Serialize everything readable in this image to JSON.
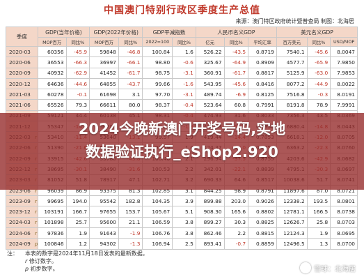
{
  "title": "中国澳门特别行政区季度生产总值",
  "source": "来源：澳门特区政府统计暨普查局    制图：北海居",
  "headers": {
    "quarter": "季度",
    "gdp_current": "GDP(当年价格)",
    "gdp_2022": "GDP(2022年价格)",
    "deflator": "GDP平减指数",
    "gdp_rmb": "人民币名义GDP",
    "gdp_usd": "美元名义GDP"
  },
  "subheaders": [
    "MOP百万",
    "同比%",
    "MOP百万",
    "同比%",
    "2022=100",
    "同比%",
    "亿元",
    "同比%",
    "平均汇率",
    "百万美元",
    "同比%",
    "USD/MOP"
  ],
  "rows": [
    {
      "q": "2020-03",
      "flag": "",
      "v": [
        "60356",
        "-45.9",
        "59848",
        "-46.8",
        "100.84",
        "1.6",
        "526.22",
        "-43.5",
        "0.8719",
        "7540.1",
        "-45.6",
        "8.0047"
      ]
    },
    {
      "q": "2020-06",
      "flag": "",
      "v": [
        "36553",
        "-66.3",
        "36997",
        "-66.1",
        "98.80",
        "-0.6",
        "325.67",
        "-64.9",
        "0.8909",
        "4577.7",
        "-65.9",
        "7.9850"
      ]
    },
    {
      "q": "2020-09",
      "flag": "",
      "v": [
        "40932",
        "-62.9",
        "41452",
        "-61.7",
        "98.75",
        "-3.1",
        "360.91",
        "-61.7",
        "0.8817",
        "5125.9",
        "-63.0",
        "7.9853"
      ]
    },
    {
      "q": "2020-12",
      "flag": "",
      "v": [
        "64636",
        "-44.6",
        "64855",
        "-43.7",
        "99.66",
        "-1.6",
        "543.95",
        "-45.6",
        "0.8416",
        "8077.2",
        "-44.9",
        "8.0022"
      ]
    },
    {
      "q": "2021-03",
      "flag": "",
      "v": [
        "60278",
        "-0.1",
        "61698",
        "3.1",
        "97.70",
        "-3.1",
        "489.74",
        "-6.9",
        "0.8125",
        "7516.8",
        "-0.3",
        "8.0191"
      ]
    },
    {
      "q": "2021-06",
      "flag": "",
      "v": [
        "65526",
        "79.3",
        "66611",
        "80.0",
        "98.37",
        "-0.4",
        "523.64",
        "60.8",
        "0.7991",
        "8191.8",
        "78.9",
        "7.9991"
      ]
    },
    {
      "q": "2021-09",
      "flag": "",
      "v": [
        "59121",
        "44.4",
        "60138",
        "45.1",
        "98.31",
        "-0.4",
        "474.93",
        "31.6",
        "0.8033",
        "7356.3",
        "43.5",
        "8.0369"
      ]
    },
    {
      "q": "2021-12",
      "flag": "",
      "v": [
        "55347",
        "-14.4",
        "56285",
        "-13.2",
        "98.33",
        "-1.3",
        "438.89",
        "-19.3",
        "0.7930",
        "6880.4",
        "-14.8",
        "8.0443"
      ]
    },
    {
      "q": "2022-03",
      "flag": "r",
      "v": [
        "53410",
        "-11.4",
        "53640",
        "-13.1",
        "99.57",
        "1.9",
        "419.44",
        "-14.4",
        "0.7853",
        "6618.1",
        "-12.0",
        "8.0705"
      ]
    },
    {
      "q": "2022-06",
      "flag": "r",
      "v": [
        "51390",
        "-21.6",
        "51496",
        "-22.7",
        "99.79",
        "1.4",
        "424.37",
        "-19.0",
        "0.8258",
        "6363.2",
        "-22.3",
        "8.0760"
      ]
    },
    {
      "q": "2022-09",
      "flag": "r",
      "v": [
        "33915",
        "-42.6",
        "33780",
        "-43.8",
        "100.40",
        "2.1",
        "296.94",
        "-37.5",
        "0.8755",
        "4203.6",
        "-42.9",
        "8.0682"
      ]
    },
    {
      "q": "2022-12",
      "flag": "r",
      "v": [
        "38695",
        "-30.1",
        "38490",
        "-31.6",
        "100.53",
        "2.2",
        "342.01",
        "-22.1",
        "0.8839",
        "4795.1",
        "-30.3",
        "8.0697"
      ]
    },
    {
      "q": "2023-03",
      "flag": "r",
      "v": [
        "81052",
        "51.8",
        "78917",
        "47.1",
        "102.71",
        "3.2",
        "690.33",
        "64.6",
        "0.8517",
        "10038.6",
        "51.7",
        "8.0741"
      ]
    },
    {
      "q": "2023-06",
      "flag": "r",
      "v": [
        "96039",
        "86.9",
        "93375",
        "81.3",
        "102.85",
        "3.1",
        "844.25",
        "98.9",
        "0.8791",
        "11897.6",
        "87.0",
        "8.0721"
      ]
    },
    {
      "q": "2023-09",
      "flag": "r",
      "v": [
        "99695",
        "194.0",
        "95542",
        "182.8",
        "104.35",
        "3.9",
        "899.88",
        "203.0",
        "0.9026",
        "12338.2",
        "193.5",
        "8.0801"
      ]
    },
    {
      "q": "2023-12",
      "flag": "r",
      "v": [
        "103191",
        "166.7",
        "97655",
        "153.7",
        "105.67",
        "5.1",
        "908.30",
        "165.6",
        "0.8802",
        "12781.1",
        "166.5",
        "8.0738"
      ]
    },
    {
      "q": "2024-03",
      "flag": "r",
      "v": [
        "101898",
        "25.7",
        "95600",
        "21.1",
        "106.59",
        "3.8",
        "899.27",
        "30.3",
        "0.8825",
        "12626.7",
        "25.8",
        "8.0703"
      ]
    },
    {
      "q": "2024-06",
      "flag": "r",
      "v": [
        "97836",
        "1.9",
        "91643",
        "-1.9",
        "106.76",
        "3.8",
        "862.46",
        "2.2",
        "0.8815",
        "12124.3",
        "1.9",
        "8.0695"
      ]
    },
    {
      "q": "2024-09",
      "flag": "p",
      "v": [
        "100846",
        "1.2",
        "94302",
        "-1.3",
        "106.94",
        "2.5",
        "893.41",
        "-0.7",
        "0.8859",
        "12496.5",
        "1.3",
        "8.0700"
      ]
    }
  ],
  "notes": {
    "label": "注：",
    "line1": "本表的数字是2024年11月18日发表的最新数据。",
    "r_mark": "r",
    "r_text": "修订数字。",
    "p_mark": "p",
    "p_text": "初步数字。"
  },
  "overlay": {
    "line1": "2024今晚新澳门开奖号码,实地",
    "line2": "数据验证执行_eShop2.920"
  },
  "watermark": {
    "text": "雪球：北海居",
    "icon": "snowball-logo-icon"
  }
}
